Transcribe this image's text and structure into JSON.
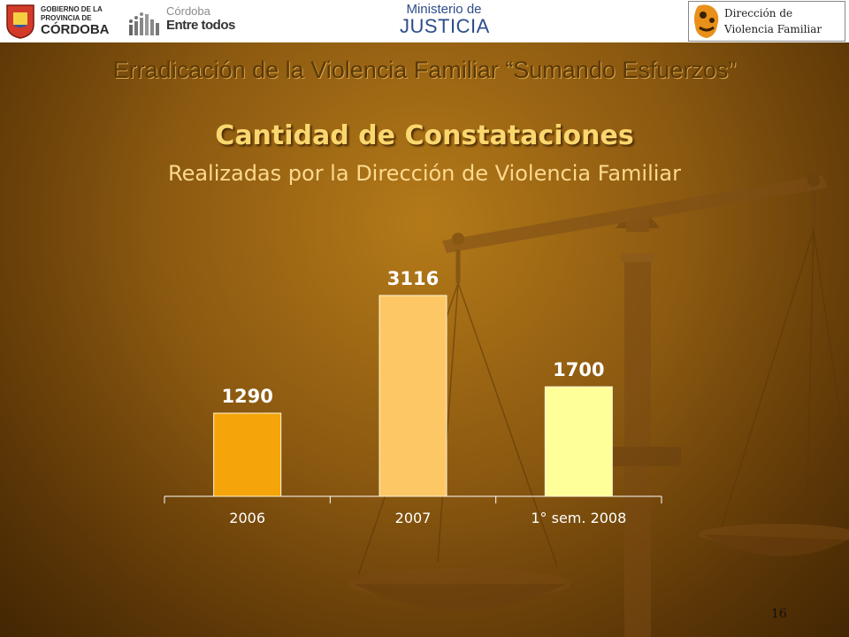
{
  "header": {
    "logo_gobierno": {
      "line1": "GOBIERNO DE LA",
      "line2": "PROVINCIA DE",
      "line3": "CÓRDOBA"
    },
    "logo_cordoba": {
      "line1": "Córdoba",
      "line2": "Entre todos"
    },
    "logo_ministerio": {
      "line1": "Ministerio de",
      "line2": "JUSTICIA"
    },
    "logo_direccion": {
      "line1": "Dirección de",
      "line2": "Violencia Familiar"
    }
  },
  "slide": {
    "title": "Erradicación de la Violencia Familiar “Sumando Esfuerzos”",
    "page_number": "16"
  },
  "colors": {
    "bar_2006": "#f5a50a",
    "bar_2007": "#fec766",
    "bar_2008": "#ffff99"
  },
  "chart_data": {
    "type": "bar",
    "title": "Cantidad de Constataciones",
    "subtitle": "Realizadas por la Dirección de Violencia Familiar",
    "categories": [
      "2006",
      "2007",
      "1° sem. 2008"
    ],
    "values": [
      1290,
      3116,
      1700
    ],
    "data_labels": [
      "1290",
      "3116",
      "1700"
    ],
    "grid": false,
    "legend": "none"
  }
}
